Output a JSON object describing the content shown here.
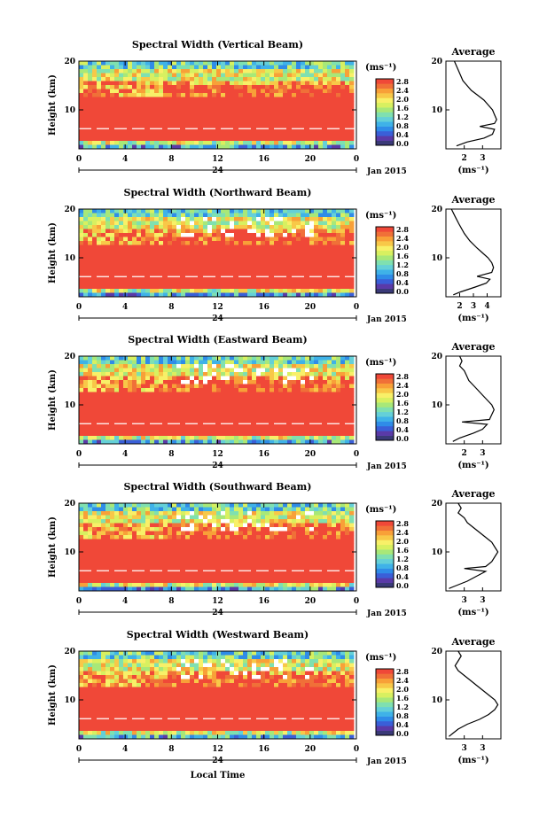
{
  "colorbar": {
    "unit": "(ms⁻¹)",
    "ticks": [
      "0.0",
      "0.4",
      "0.8",
      "1.2",
      "1.6",
      "2.0",
      "2.4",
      "2.8"
    ],
    "colors": [
      "#3a3a78",
      "#5a3aa8",
      "#3a5fd8",
      "#2f8ce8",
      "#3fb2e8",
      "#64d0d8",
      "#7fe0b0",
      "#a8e878",
      "#d8f060",
      "#f8f068",
      "#f8c848",
      "#f8a038",
      "#f07038",
      "#f04838"
    ]
  },
  "x_axis": {
    "ticks": [
      "0",
      "4",
      "8",
      "12",
      "16",
      "20",
      "0"
    ],
    "day_label": "24",
    "date_label": "Jan 2015",
    "xlabel": "Local Time"
  },
  "avg_title": "Average",
  "avg_unit": "(ms⁻¹)",
  "chart_data": [
    {
      "type": "heatmap",
      "title": "Spectral Width (Vertical Beam)",
      "ylabel": "Height (km)",
      "y_ticks": [
        "20",
        "10"
      ],
      "ylim": [
        2,
        20
      ],
      "xlim": [
        0,
        24
      ],
      "avg_profile": {
        "xlim": [
          1.0,
          3.6
        ],
        "xticks": [
          "2",
          "3"
        ],
        "points": [
          [
            1.4,
            20
          ],
          [
            1.5,
            19
          ],
          [
            1.6,
            18
          ],
          [
            1.7,
            17
          ],
          [
            1.8,
            16
          ],
          [
            2.0,
            15
          ],
          [
            2.2,
            14
          ],
          [
            2.5,
            13
          ],
          [
            2.8,
            12
          ],
          [
            3.0,
            11
          ],
          [
            3.2,
            10
          ],
          [
            3.3,
            9
          ],
          [
            3.4,
            8
          ],
          [
            3.3,
            7.2
          ],
          [
            2.6,
            6.6
          ],
          [
            3.3,
            6
          ],
          [
            3.2,
            5
          ],
          [
            2.8,
            4.2
          ],
          [
            2.0,
            3.4
          ],
          [
            1.5,
            2.6
          ]
        ]
      }
    },
    {
      "type": "heatmap",
      "title": "Spectral Width (Northward Beam)",
      "ylabel": "Height (km)",
      "y_ticks": [
        "20",
        "10"
      ],
      "ylim": [
        2,
        20
      ],
      "xlim": [
        0,
        24
      ],
      "avg_profile": {
        "xlim": [
          1.0,
          4.0
        ],
        "xticks": [
          "2",
          "3",
          "4"
        ],
        "points": [
          [
            1.3,
            20
          ],
          [
            1.5,
            18.5
          ],
          [
            1.7,
            17
          ],
          [
            2.0,
            15
          ],
          [
            2.3,
            13.5
          ],
          [
            2.7,
            12
          ],
          [
            3.0,
            11
          ],
          [
            3.3,
            10
          ],
          [
            3.5,
            9
          ],
          [
            3.6,
            8
          ],
          [
            3.5,
            7
          ],
          [
            2.7,
            6.2
          ],
          [
            3.4,
            5.6
          ],
          [
            3.2,
            4.8
          ],
          [
            2.6,
            4
          ],
          [
            1.8,
            3
          ],
          [
            1.4,
            2.4
          ]
        ]
      }
    },
    {
      "type": "heatmap",
      "title": "Spectral Width (Eastward Beam)",
      "ylabel": "Height (km)",
      "y_ticks": [
        "20",
        "10"
      ],
      "ylim": [
        2,
        20
      ],
      "xlim": [
        0,
        24
      ],
      "avg_profile": {
        "xlim": [
          1.6,
          4.0
        ],
        "xticks": [
          "2",
          "3"
        ],
        "points": [
          [
            2.2,
            20
          ],
          [
            2.3,
            19
          ],
          [
            2.2,
            18
          ],
          [
            2.4,
            17
          ],
          [
            2.5,
            16
          ],
          [
            2.6,
            15
          ],
          [
            2.8,
            14
          ],
          [
            3.0,
            13
          ],
          [
            3.2,
            12
          ],
          [
            3.4,
            11
          ],
          [
            3.6,
            10
          ],
          [
            3.7,
            9
          ],
          [
            3.6,
            8
          ],
          [
            3.5,
            7
          ],
          [
            2.3,
            6.5
          ],
          [
            3.4,
            6
          ],
          [
            3.2,
            5
          ],
          [
            2.8,
            4.2
          ],
          [
            2.2,
            3.2
          ],
          [
            1.9,
            2.5
          ]
        ]
      }
    },
    {
      "type": "heatmap",
      "title": "Spectral Width (Southward Beam)",
      "ylabel": "Height (km)",
      "y_ticks": [
        "20",
        "10"
      ],
      "ylim": [
        2,
        20
      ],
      "xlim": [
        0,
        24
      ],
      "avg_profile": {
        "xlim": [
          2.3,
          4.1
        ],
        "xticks": [
          "3",
          "3"
        ],
        "points": [
          [
            2.7,
            20
          ],
          [
            2.8,
            19
          ],
          [
            2.7,
            18
          ],
          [
            2.9,
            17
          ],
          [
            3.0,
            16
          ],
          [
            3.2,
            15
          ],
          [
            3.4,
            14
          ],
          [
            3.6,
            13
          ],
          [
            3.8,
            12
          ],
          [
            3.9,
            11
          ],
          [
            4.0,
            10
          ],
          [
            3.9,
            9
          ],
          [
            3.8,
            8
          ],
          [
            3.6,
            7
          ],
          [
            2.9,
            6.6
          ],
          [
            3.6,
            6
          ],
          [
            3.3,
            5
          ],
          [
            3.0,
            4
          ],
          [
            2.6,
            3
          ],
          [
            2.4,
            2.5
          ]
        ]
      }
    },
    {
      "type": "heatmap",
      "title": "Spectral Width (Westward Beam)",
      "ylabel": "Height (km)",
      "y_ticks": [
        "20",
        "10"
      ],
      "ylim": [
        2,
        20
      ],
      "xlim": [
        0,
        24
      ],
      "avg_profile": {
        "xlim": [
          2.3,
          4.1
        ],
        "xticks": [
          "3",
          "3"
        ],
        "points": [
          [
            2.7,
            20
          ],
          [
            2.8,
            19
          ],
          [
            2.7,
            18
          ],
          [
            2.6,
            17
          ],
          [
            2.7,
            16
          ],
          [
            2.9,
            15
          ],
          [
            3.1,
            14
          ],
          [
            3.3,
            13
          ],
          [
            3.5,
            12
          ],
          [
            3.7,
            11
          ],
          [
            3.9,
            10
          ],
          [
            4.0,
            9
          ],
          [
            3.9,
            8
          ],
          [
            3.7,
            7
          ],
          [
            3.4,
            6
          ],
          [
            3.0,
            5
          ],
          [
            2.7,
            4
          ],
          [
            2.5,
            3
          ],
          [
            2.4,
            2.5
          ]
        ]
      }
    }
  ]
}
